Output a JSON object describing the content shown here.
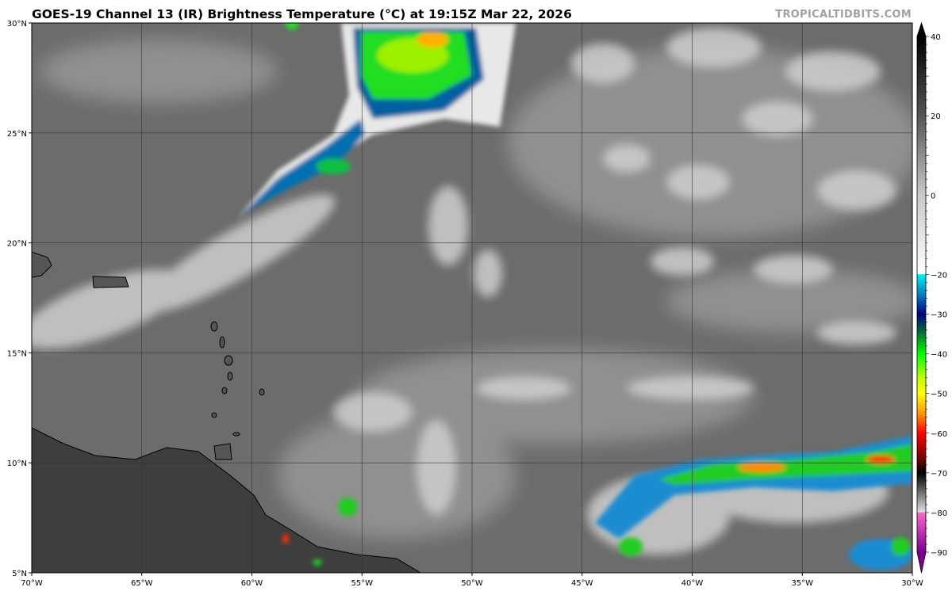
{
  "title": "GOES-19 Channel 13 (IR) Brightness Temperature (°C) at 19:15Z Mar 22, 2026",
  "watermark": "TROPICALTIDBITS.COM",
  "map": {
    "lon_range": [
      -70,
      -30
    ],
    "lat_range": [
      5,
      30
    ],
    "lat_labels": [
      {
        "value": 30,
        "label": "30°N"
      },
      {
        "value": 25,
        "label": "25°N"
      },
      {
        "value": 20,
        "label": "20°N"
      },
      {
        "value": 15,
        "label": "15°N"
      },
      {
        "value": 10,
        "label": "10°N"
      },
      {
        "value": 5,
        "label": "5°N"
      }
    ],
    "lon_labels": [
      {
        "value": -70,
        "label": "70°W"
      },
      {
        "value": -65,
        "label": "65°W"
      },
      {
        "value": -60,
        "label": "60°W"
      },
      {
        "value": -55,
        "label": "55°W"
      },
      {
        "value": -50,
        "label": "50°W"
      },
      {
        "value": -45,
        "label": "45°W"
      },
      {
        "value": -40,
        "label": "40°W"
      },
      {
        "value": -35,
        "label": "35°W"
      },
      {
        "value": -30,
        "label": "30°W"
      }
    ]
  },
  "colorbar": {
    "range": [
      -90,
      40
    ],
    "ticks": [
      "40",
      "20",
      "0",
      "−20",
      "−30",
      "−40",
      "−50",
      "−60",
      "−70",
      "−80",
      "−90"
    ],
    "tick_values": [
      40,
      20,
      0,
      -20,
      -30,
      -40,
      -50,
      -60,
      -70,
      -80,
      -90
    ],
    "stops": [
      {
        "t": 40,
        "color": "#000000"
      },
      {
        "t": 20,
        "color": "#555555"
      },
      {
        "t": 0,
        "color": "#c8c8c8"
      },
      {
        "t": -19.9,
        "color": "#ffffff"
      },
      {
        "t": -20,
        "color": "#00f0f0"
      },
      {
        "t": -25,
        "color": "#0080c0"
      },
      {
        "t": -30,
        "color": "#000080"
      },
      {
        "t": -34,
        "color": "#006040"
      },
      {
        "t": -40,
        "color": "#00ff00"
      },
      {
        "t": -46,
        "color": "#c0ff00"
      },
      {
        "t": -50,
        "color": "#ffff00"
      },
      {
        "t": -55,
        "color": "#ff9900"
      },
      {
        "t": -60,
        "color": "#ff0000"
      },
      {
        "t": -66,
        "color": "#800000"
      },
      {
        "t": -70,
        "color": "#000000"
      },
      {
        "t": -75,
        "color": "#707070"
      },
      {
        "t": -79.9,
        "color": "#e0e0e0"
      },
      {
        "t": -80,
        "color": "#ff66cc"
      },
      {
        "t": -90,
        "color": "#7a0090"
      }
    ]
  }
}
